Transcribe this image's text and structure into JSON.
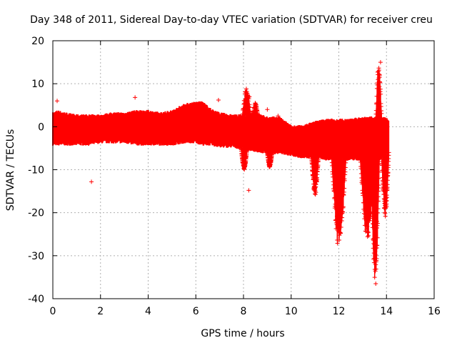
{
  "chart_data": {
    "type": "scatter",
    "title": "Day 348 of 2011, Sidereal Day-to-day VTEC variation (SDTVAR) for receiver creu",
    "xlabel": "GPS time / hours",
    "ylabel": "SDTVAR / TECUs",
    "xlim": [
      0,
      16
    ],
    "ylim": [
      -40,
      20
    ],
    "xticks": [
      0,
      2,
      4,
      6,
      8,
      10,
      12,
      14,
      16
    ],
    "yticks": [
      -40,
      -30,
      -20,
      -10,
      0,
      10,
      20
    ],
    "grid": true,
    "marker": "+",
    "color": "#ff0000",
    "series": [
      {
        "name": "SDTVAR",
        "band_t": [
          0.0,
          0.2,
          0.5,
          1.0,
          1.5,
          2.0,
          2.5,
          3.0,
          3.5,
          4.0,
          4.5,
          5.0,
          5.5,
          6.0,
          6.3,
          6.6,
          7.0,
          7.5,
          8.0,
          8.5,
          9.0,
          9.5,
          10.0,
          10.5,
          11.0,
          11.5,
          12.0,
          12.5,
          13.0,
          13.4,
          13.8,
          14.1
        ],
        "band_lo": [
          -4,
          -4,
          -4,
          -4,
          -4,
          -3.5,
          -3.5,
          -3.5,
          -4,
          -4,
          -4,
          -4,
          -3.5,
          -3.5,
          -4,
          -4,
          -4.5,
          -4.5,
          -5,
          -5.5,
          -6,
          -6,
          -6.5,
          -7,
          -7,
          -7.5,
          -7.5,
          -7.5,
          -7.5,
          -7.5,
          -7.5,
          -6
        ],
        "band_hi": [
          3,
          3.5,
          3,
          2.5,
          2.5,
          2.5,
          3,
          3,
          3.5,
          3.5,
          3,
          3.5,
          5,
          5.5,
          5.5,
          4,
          3,
          2.5,
          2.5,
          3,
          2,
          2,
          0,
          0,
          1,
          1.5,
          1.5,
          1.5,
          2,
          2,
          2,
          1.5
        ],
        "outliers": [
          {
            "x": 1.62,
            "y": -12.8
          },
          {
            "x": 3.45,
            "y": 6.8
          },
          {
            "x": 0.18,
            "y": 6.0
          },
          {
            "x": 6.95,
            "y": 6.2
          },
          {
            "x": 8.22,
            "y": -14.8
          },
          {
            "x": 8.12,
            "y": 8.8
          },
          {
            "x": 8.25,
            "y": 7.0
          },
          {
            "x": 8.5,
            "y": 5.5
          },
          {
            "x": 9.0,
            "y": 4.0
          },
          {
            "x": 9.1,
            "y": -9.0
          },
          {
            "x": 9.45,
            "y": 2.5
          },
          {
            "x": 13.75,
            "y": 15.0
          },
          {
            "x": 13.72,
            "y": 12.0
          },
          {
            "x": 13.6,
            "y": -22.0
          },
          {
            "x": 13.55,
            "y": -36.5
          }
        ],
        "dips": [
          {
            "t_start": 7.9,
            "t_end": 8.15,
            "y_min": -10
          },
          {
            "t_start": 9.0,
            "t_end": 9.2,
            "y_min": -9.5
          },
          {
            "t_start": 10.85,
            "t_end": 11.15,
            "y_min": -16
          },
          {
            "t_start": 11.7,
            "t_end": 12.3,
            "y_min": -28
          },
          {
            "t_start": 12.9,
            "t_end": 13.5,
            "y_min": -26
          },
          {
            "t_start": 13.35,
            "t_end": 13.7,
            "y_min": -36.5
          },
          {
            "t_start": 13.8,
            "t_end": 14.1,
            "y_min": -21
          }
        ],
        "spikes": [
          {
            "t_start": 7.95,
            "t_end": 8.3,
            "y_max": 9
          },
          {
            "t_start": 8.4,
            "t_end": 8.6,
            "y_max": 5.5
          },
          {
            "t_start": 13.55,
            "t_end": 13.8,
            "y_max": 15
          }
        ]
      }
    ]
  }
}
